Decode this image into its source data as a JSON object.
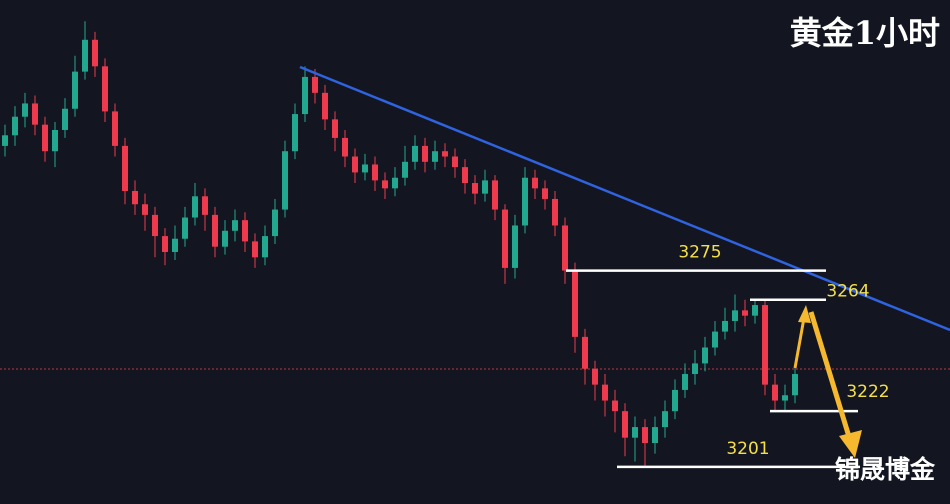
{
  "chart_data": {
    "type": "candlestick",
    "title": "黄金1小时",
    "watermark": "锦晟博金",
    "ylim": [
      3187,
      3377
    ],
    "up_color": "#22a88e",
    "down_color": "#ee3a4c",
    "open": [
      3322,
      3326,
      3333,
      3338,
      3330,
      3320,
      3328,
      3336,
      3350,
      3362,
      3352,
      3335,
      3322,
      3305,
      3300,
      3296,
      3288,
      3282,
      3287,
      3295,
      3303,
      3296,
      3284,
      3290,
      3294,
      3286,
      3280,
      3288,
      3298,
      3320,
      3334,
      3348,
      3342,
      3332,
      3325,
      3318,
      3312,
      3315,
      3309,
      3306,
      3310,
      3316,
      3322,
      3316,
      3320,
      3318,
      3314,
      3308,
      3304,
      3309,
      3298,
      3276,
      3292,
      3310,
      3306,
      3302,
      3292,
      3275,
      3250,
      3238,
      3232,
      3226,
      3222,
      3212,
      3216,
      3210,
      3216,
      3222,
      3230,
      3236,
      3240,
      3246,
      3252,
      3256,
      3260,
      3258,
      3262,
      3232,
      3226,
      3228
    ],
    "high": [
      3330,
      3337,
      3342,
      3341,
      3333,
      3331,
      3340,
      3356,
      3369,
      3365,
      3355,
      3338,
      3325,
      3309,
      3304,
      3299,
      3291,
      3292,
      3299,
      3308,
      3306,
      3299,
      3294,
      3298,
      3297,
      3289,
      3292,
      3302,
      3324,
      3338,
      3352,
      3351,
      3345,
      3335,
      3328,
      3321,
      3319,
      3318,
      3312,
      3314,
      3322,
      3326,
      3325,
      3324,
      3323,
      3321,
      3317,
      3311,
      3313,
      3311,
      3300,
      3296,
      3314,
      3313,
      3309,
      3305,
      3295,
      3278,
      3253,
      3241,
      3236,
      3230,
      3225,
      3220,
      3219,
      3220,
      3226,
      3234,
      3240,
      3245,
      3250,
      3256,
      3261,
      3266,
      3264,
      3264,
      3264,
      3236,
      3232,
      3240
    ],
    "low": [
      3318,
      3322,
      3329,
      3326,
      3316,
      3314,
      3325,
      3333,
      3347,
      3348,
      3331,
      3318,
      3300,
      3296,
      3290,
      3280,
      3277,
      3279,
      3284,
      3292,
      3290,
      3280,
      3281,
      3286,
      3282,
      3276,
      3277,
      3285,
      3295,
      3317,
      3331,
      3338,
      3328,
      3320,
      3314,
      3308,
      3309,
      3305,
      3302,
      3303,
      3307,
      3313,
      3312,
      3313,
      3314,
      3310,
      3304,
      3300,
      3301,
      3294,
      3270,
      3272,
      3289,
      3302,
      3298,
      3288,
      3270,
      3244,
      3232,
      3226,
      3220,
      3214,
      3205,
      3203,
      3201,
      3206,
      3212,
      3219,
      3227,
      3232,
      3237,
      3243,
      3249,
      3252,
      3254,
      3255,
      3228,
      3222,
      3222,
      3225
    ],
    "close": [
      3326,
      3333,
      3338,
      3330,
      3320,
      3328,
      3336,
      3350,
      3362,
      3352,
      3335,
      3322,
      3305,
      3300,
      3296,
      3288,
      3282,
      3287,
      3295,
      3303,
      3296,
      3284,
      3290,
      3294,
      3286,
      3280,
      3288,
      3298,
      3320,
      3334,
      3348,
      3342,
      3332,
      3325,
      3318,
      3312,
      3315,
      3309,
      3306,
      3310,
      3316,
      3322,
      3316,
      3320,
      3318,
      3314,
      3308,
      3304,
      3309,
      3298,
      3276,
      3292,
      3310,
      3306,
      3302,
      3292,
      3275,
      3250,
      3238,
      3232,
      3226,
      3222,
      3212,
      3216,
      3210,
      3216,
      3222,
      3230,
      3236,
      3240,
      3246,
      3252,
      3256,
      3260,
      3258,
      3262,
      3232,
      3226,
      3228,
      3236
    ],
    "levels": [
      3275,
      3264,
      3222,
      3201
    ]
  }
}
